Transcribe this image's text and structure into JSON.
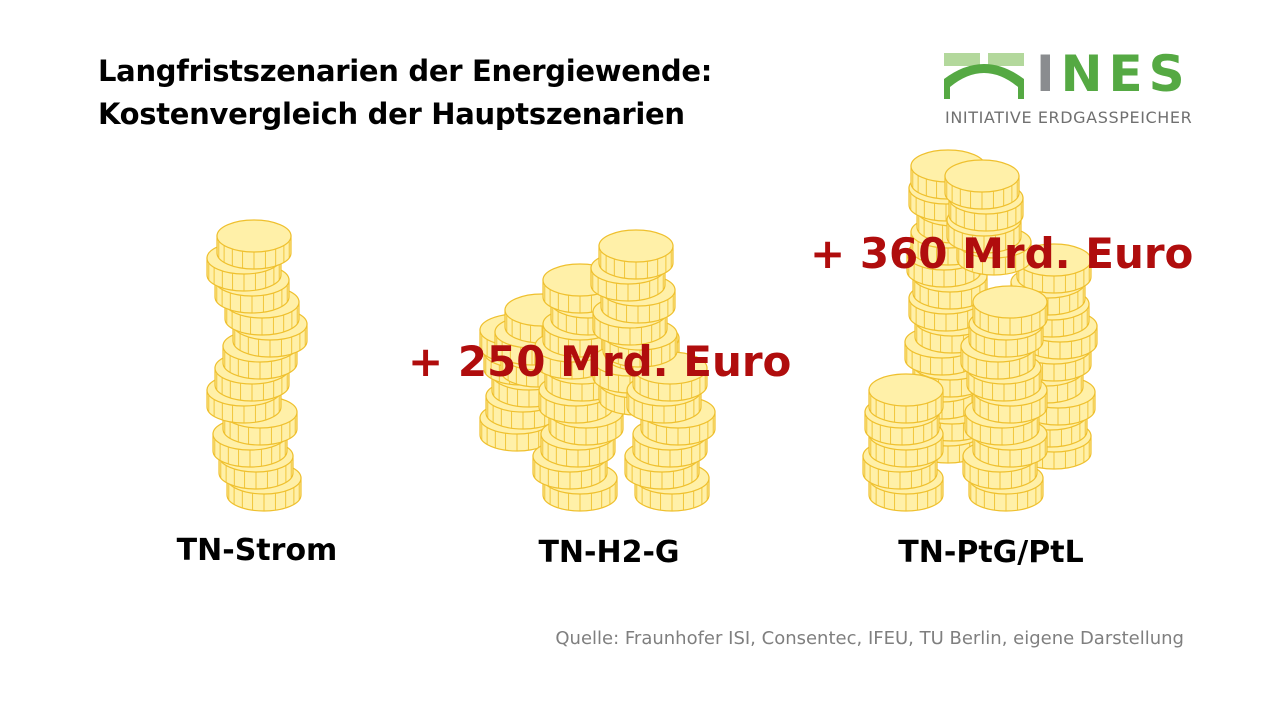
{
  "title": {
    "line1": "Langfristszenarien der Energiewende:",
    "line2": "Kostenvergleich der Hauptszenarien"
  },
  "logo": {
    "letter_grey": "I",
    "letters_green": "NES",
    "subtitle": "INITIATIVE ERDGASSPEICHER",
    "colors": {
      "grey": "#8a8c8f",
      "green": "#55a943",
      "light_green": "#b3d89c"
    }
  },
  "scenarios": [
    {
      "label": "TN-Strom",
      "cost_label": ""
    },
    {
      "label": "TN-H2-G",
      "cost_label": "+ 250 Mrd. Euro"
    },
    {
      "label": "TN-PtG/PtL",
      "cost_label": "+ 360 Mrd. Euro"
    }
  ],
  "source": "Quelle: Fraunhofer ISI, Consentec, IFEU, TU Berlin, eigene Darstellung",
  "colors": {
    "coin_fill": "#fff0a8",
    "coin_stroke": "#efc02e",
    "cost_text": "#b00d0d"
  }
}
